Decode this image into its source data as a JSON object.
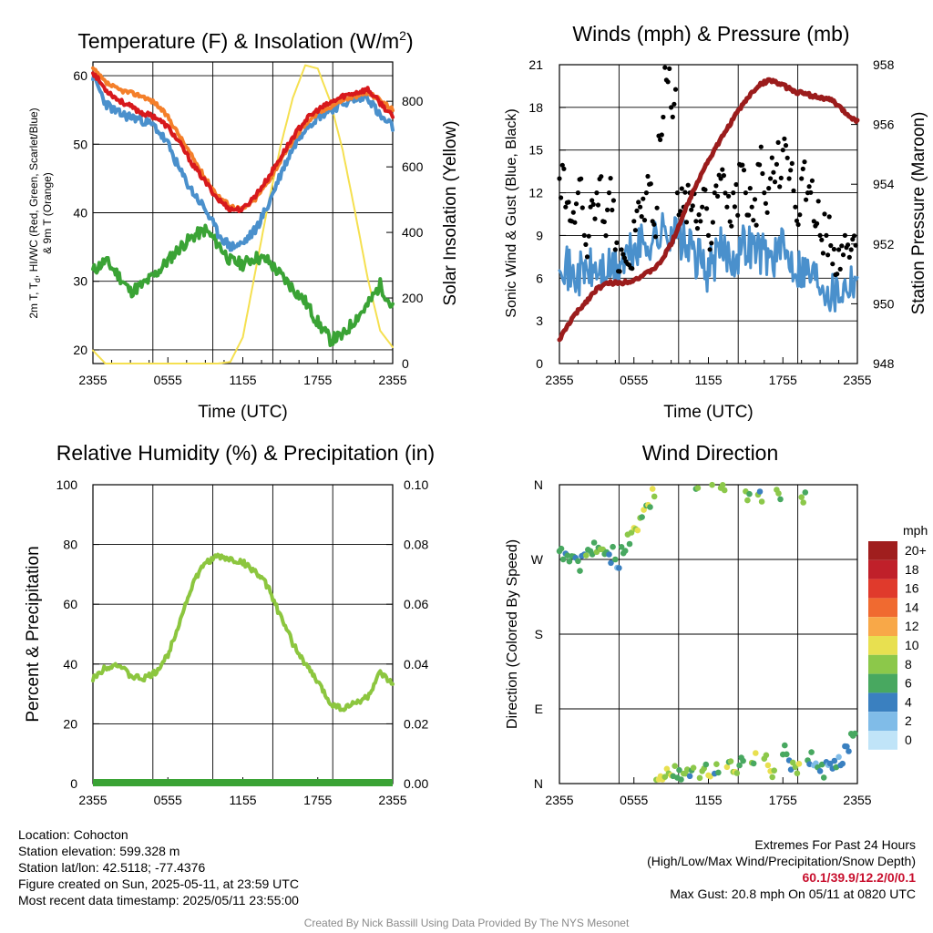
{
  "charts": {
    "temp": {
      "title": "Temperature (F) & Insolation (W/m",
      "title_sup": "2",
      "title_end": ")",
      "xlabel": "Time (UTC)",
      "ylabel_lines": [
        "2m T, T",
        "d",
        ", HI/WC (Red, Green, Scarlet/Blue)",
        "& 9m T (Orange)"
      ],
      "y2label": "Solar Insolation (Yellow)",
      "yticks": [
        "20",
        "30",
        "40",
        "50",
        "60"
      ],
      "y2ticks": [
        "0",
        "200",
        "400",
        "600",
        "800"
      ],
      "xticks": [
        "2355",
        "0555",
        "1155",
        "1755",
        "2355"
      ]
    },
    "winds": {
      "title": "Winds (mph) & Pressure (mb)",
      "xlabel": "Time (UTC)",
      "ylabel": "Sonic Wind & Gust (Blue, Black)",
      "y2label": "Station Pressure (Maroon)",
      "yticks": [
        "0",
        "3",
        "6",
        "9",
        "12",
        "15",
        "18",
        "21"
      ],
      "y2ticks": [
        "948",
        "950",
        "952",
        "954",
        "956",
        "958"
      ],
      "xticks": [
        "2355",
        "0555",
        "1155",
        "1755",
        "2355"
      ]
    },
    "rh": {
      "title": "Relative Humidity (%) & Precipitation (in)",
      "ylabel": "Percent & Precipitation",
      "yticks": [
        "0",
        "20",
        "40",
        "60",
        "80",
        "100"
      ],
      "y2ticks": [
        "0.00",
        "0.02",
        "0.04",
        "0.06",
        "0.08",
        "0.10"
      ],
      "xticks": [
        "2355",
        "0555",
        "1155",
        "1755",
        "2355"
      ]
    },
    "wdir": {
      "title": "Wind Direction",
      "ylabel": "Direction (Colored By Speed)",
      "yticks": [
        "N",
        "E",
        "S",
        "W",
        "N"
      ],
      "xticks": [
        "2355",
        "0555",
        "1155",
        "1755",
        "2355"
      ],
      "legend_title": "mph",
      "legend_labels": [
        "20+",
        "18",
        "16",
        "14",
        "12",
        "10",
        "8",
        "6",
        "4",
        "2",
        "0"
      ],
      "legend_colors": [
        "#a01e1e",
        "#c0202a",
        "#e03a2c",
        "#f06a30",
        "#f8a848",
        "#e8e050",
        "#8cc84a",
        "#48a860",
        "#3a80c0",
        "#80bce8",
        "#c0e4f8"
      ]
    }
  },
  "colors": {
    "temp_red": "#d7191c",
    "temp_orange": "#f47f2a",
    "temp_blue": "#4a90cc",
    "dewpoint_green": "#3aa335",
    "insolation_yellow": "#f5e050",
    "wind_blue": "#4a90cc",
    "gust_black": "#000000",
    "pressure_maroon": "#9b1c1c",
    "rh_green": "#8cc63f",
    "precip_green": "#3aa335"
  },
  "info": {
    "location": "Location: Cohocton",
    "elevation": "Station elevation: 599.328 m",
    "latlon": "Station lat/lon: 42.5118; -77.4376",
    "created": "Figure created on Sun, 2025-05-11, at 23:59 UTC",
    "recent": "Most recent data timestamp: 2025/05/11 23:55:00"
  },
  "extremes": {
    "title": "Extremes For Past 24 Hours",
    "subtitle": "(High/Low/Max Wind/Precipitation/Snow Depth)",
    "values": "60.1/39.9/12.2/0/0.1",
    "gust": "Max Gust: 20.8 mph On 05/11 at 0820 UTC"
  },
  "credit": "Created By Nick Bassill Using Data Provided By The NYS Mesonet",
  "chart_data": [
    {
      "type": "line",
      "title": "Temperature (F) & Insolation (W/m2)",
      "xlabel": "Time (UTC)",
      "xlim": [
        0,
        24
      ],
      "x_ticks": [
        "2355",
        "0555",
        "1155",
        "1755",
        "2355"
      ],
      "ylim": [
        18,
        62
      ],
      "y2lim": [
        0,
        920
      ],
      "series": [
        {
          "name": "2m T",
          "color": "#d7191c",
          "axis": "left",
          "x": [
            0,
            1,
            2,
            3,
            4,
            5,
            6,
            7,
            8,
            9,
            10,
            11,
            12,
            13,
            14,
            15,
            16,
            17,
            18,
            19,
            20,
            21,
            22,
            23,
            24
          ],
          "y": [
            60.5,
            58,
            56.5,
            55.5,
            54.5,
            54,
            52.5,
            50,
            47,
            44.5,
            42,
            40.5,
            40.5,
            42.5,
            45,
            48,
            51,
            53.5,
            55,
            56,
            57,
            57.5,
            58,
            56,
            54
          ]
        },
        {
          "name": "9m T",
          "color": "#f47f2a",
          "axis": "left",
          "x": [
            0,
            1,
            2,
            3,
            4,
            5,
            6,
            7,
            8,
            9,
            10,
            11,
            12,
            13,
            14,
            15,
            16,
            17,
            18,
            19,
            20,
            21,
            22,
            23,
            24
          ],
          "y": [
            61,
            59,
            58,
            57.5,
            57,
            56,
            54,
            51,
            48,
            45,
            42.5,
            41,
            40.5,
            42,
            44.5,
            47.5,
            50.5,
            53,
            54.5,
            55.5,
            56.5,
            57,
            57.5,
            56.5,
            55
          ]
        },
        {
          "name": "HI/WC",
          "color": "#4a90cc",
          "axis": "left",
          "x": [
            0,
            1,
            2,
            3,
            4,
            5,
            6,
            7,
            8,
            9,
            10,
            11,
            12,
            13,
            14,
            15,
            16,
            17,
            18,
            19,
            20,
            21,
            22,
            23,
            24
          ],
          "y": [
            60,
            56,
            54.5,
            54,
            53.5,
            52.5,
            50,
            46,
            43,
            40.5,
            37,
            35,
            35.5,
            37.5,
            41,
            45.5,
            49.5,
            52.5,
            54,
            55,
            56,
            56.5,
            57,
            54,
            52.5
          ]
        },
        {
          "name": "2m Td",
          "color": "#3aa335",
          "axis": "left",
          "x": [
            0,
            1,
            2,
            3,
            4,
            5,
            6,
            7,
            8,
            9,
            10,
            11,
            12,
            13,
            14,
            15,
            16,
            17,
            18,
            19,
            20,
            21,
            22,
            23,
            24
          ],
          "y": [
            31.5,
            33,
            31,
            28.5,
            29.5,
            31,
            33,
            35,
            36.5,
            37.5,
            35.5,
            33,
            32.5,
            33.5,
            33,
            31,
            29,
            27,
            24,
            21.5,
            22,
            24.5,
            26.5,
            29.5,
            26
          ]
        },
        {
          "name": "Solar Insolation",
          "color": "#f5e050",
          "axis": "right",
          "x": [
            0,
            1,
            2,
            3,
            4,
            5,
            6,
            7,
            8,
            9,
            10,
            11,
            12,
            13,
            14,
            15,
            16,
            17,
            18,
            19,
            20,
            21,
            22,
            23,
            24
          ],
          "y": [
            40,
            0,
            0,
            0,
            0,
            0,
            0,
            0,
            0,
            0,
            0,
            5,
            80,
            280,
            480,
            660,
            810,
            910,
            900,
            800,
            650,
            460,
            260,
            100,
            50
          ]
        }
      ]
    },
    {
      "type": "line",
      "title": "Winds (mph) & Pressure (mb)",
      "xlabel": "Time (UTC)",
      "xlim": [
        0,
        24
      ],
      "x_ticks": [
        "2355",
        "0555",
        "1155",
        "1755",
        "2355"
      ],
      "ylim": [
        0,
        21
      ],
      "y2lim": [
        948,
        958
      ],
      "series": [
        {
          "name": "Sonic Wind",
          "color": "#4a90cc",
          "axis": "left",
          "x": [
            0,
            1,
            2,
            3,
            4,
            5,
            6,
            7,
            8,
            9,
            10,
            11,
            12,
            13,
            14,
            15,
            16,
            17,
            18,
            19,
            20,
            21,
            22,
            23,
            24
          ],
          "y": [
            8,
            6,
            6.5,
            6.5,
            6.5,
            7,
            8,
            8.5,
            9,
            9.5,
            8.5,
            7.5,
            6.5,
            8,
            7.5,
            8.5,
            8,
            7.5,
            8,
            7,
            6.5,
            6,
            5,
            5.5,
            6.5
          ]
        },
        {
          "name": "Gust",
          "color": "#000000",
          "axis": "left",
          "mode": "points",
          "x": [
            0,
            0.5,
            1,
            1.5,
            2,
            2.5,
            3,
            3.5,
            4,
            4.5,
            5,
            5.5,
            6,
            6.5,
            7,
            7.5,
            8,
            8.5,
            9,
            9.5,
            10,
            10.5,
            11,
            11.5,
            12,
            12.5,
            13,
            13.5,
            14,
            14.5,
            15,
            15.5,
            16,
            16.5,
            17,
            17.5,
            18,
            18.5,
            19,
            19.5,
            20,
            20.5,
            21,
            21.5,
            22,
            22.5,
            23,
            23.5
          ],
          "y": [
            13,
            11,
            10,
            12,
            9,
            11,
            12,
            10,
            12,
            8,
            8,
            7,
            10,
            11,
            12,
            10,
            16,
            20.8,
            18,
            12,
            11,
            12,
            10,
            11,
            9,
            12,
            13,
            11,
            12,
            14,
            12,
            11,
            14,
            12,
            13,
            14,
            15,
            13,
            11,
            13,
            12,
            10,
            9,
            9,
            7,
            8,
            9,
            8
          ]
        },
        {
          "name": "Station Pressure",
          "color": "#9b1c1c",
          "axis": "right",
          "x": [
            0,
            1,
            2,
            3,
            4,
            5,
            6,
            7,
            8,
            9,
            10,
            11,
            12,
            13,
            14,
            15,
            16,
            17,
            18,
            19,
            20,
            21,
            22,
            23,
            24
          ],
          "y": [
            948.8,
            949.5,
            950,
            950.5,
            950.7,
            950.7,
            950.8,
            951,
            951.3,
            952,
            953,
            954,
            954.8,
            955.5,
            956.2,
            956.8,
            957.3,
            957.5,
            957.3,
            957.1,
            957,
            956.9,
            956.8,
            956.4,
            956.1
          ]
        }
      ]
    },
    {
      "type": "line",
      "title": "Relative Humidity (%) & Precipitation (in)",
      "xlim": [
        0,
        24
      ],
      "x_ticks": [
        "2355",
        "0555",
        "1155",
        "1755",
        "2355"
      ],
      "ylim": [
        0,
        100
      ],
      "y2lim": [
        0,
        0.1
      ],
      "series": [
        {
          "name": "RH",
          "color": "#8cc63f",
          "axis": "left",
          "x": [
            0,
            1,
            2,
            3,
            4,
            5,
            6,
            7,
            8,
            9,
            10,
            11,
            12,
            13,
            14,
            15,
            16,
            17,
            18,
            19,
            20,
            21,
            22,
            23,
            24
          ],
          "y": [
            35,
            39,
            40,
            36,
            35,
            37,
            43,
            55,
            67,
            74,
            76,
            75,
            74,
            71,
            66,
            56,
            47,
            40,
            34,
            27,
            25,
            27,
            29,
            37,
            33
          ]
        },
        {
          "name": "Precipitation",
          "color": "#3aa335",
          "axis": "right",
          "x": [
            0,
            24
          ],
          "y": [
            0,
            0
          ]
        }
      ]
    },
    {
      "type": "scatter",
      "title": "Wind Direction",
      "xlim": [
        0,
        24
      ],
      "x_ticks": [
        "2355",
        "0555",
        "1155",
        "1755",
        "2355"
      ],
      "y_ticks": [
        "N",
        "E",
        "S",
        "W",
        "N"
      ],
      "ylim": [
        0,
        360
      ],
      "color_by": "speed (mph)",
      "points": [
        {
          "x": 0.0,
          "dir": 280,
          "spd": 6
        },
        {
          "x": 0.5,
          "dir": 277,
          "spd": 5
        },
        {
          "x": 1.0,
          "dir": 274,
          "spd": 5
        },
        {
          "x": 1.5,
          "dir": 268,
          "spd": 4
        },
        {
          "x": 2.0,
          "dir": 276,
          "spd": 6
        },
        {
          "x": 2.5,
          "dir": 280,
          "spd": 7
        },
        {
          "x": 3.0,
          "dir": 279,
          "spd": 7
        },
        {
          "x": 3.5,
          "dir": 282,
          "spd": 6
        },
        {
          "x": 4.0,
          "dir": 276,
          "spd": 5
        },
        {
          "x": 4.5,
          "dir": 270,
          "spd": 4
        },
        {
          "x": 5.0,
          "dir": 285,
          "spd": 7
        },
        {
          "x": 5.5,
          "dir": 300,
          "spd": 8
        },
        {
          "x": 6.0,
          "dir": 308,
          "spd": 8
        },
        {
          "x": 6.5,
          "dir": 320,
          "spd": 8
        },
        {
          "x": 7.0,
          "dir": 335,
          "spd": 8
        },
        {
          "x": 7.5,
          "dir": 355,
          "spd": 10
        },
        {
          "x": 8.0,
          "dir": 5,
          "spd": 11
        },
        {
          "x": 8.5,
          "dir": 8,
          "spd": 9
        },
        {
          "x": 9.0,
          "dir": 10,
          "spd": 8
        },
        {
          "x": 9.5,
          "dir": 7,
          "spd": 7
        },
        {
          "x": 10.0,
          "dir": 12,
          "spd": 9
        },
        {
          "x": 10.5,
          "dir": 9,
          "spd": 6
        },
        {
          "x": 11.0,
          "dir": 355,
          "spd": 7
        },
        {
          "x": 11.5,
          "dir": 15,
          "spd": 7
        },
        {
          "x": 12.0,
          "dir": 10,
          "spd": 8
        },
        {
          "x": 12.5,
          "dir": 12,
          "spd": 6
        },
        {
          "x": 13.0,
          "dir": 356,
          "spd": 7
        },
        {
          "x": 13.5,
          "dir": 20,
          "spd": 8
        },
        {
          "x": 14.0,
          "dir": 14,
          "spd": 9
        },
        {
          "x": 14.5,
          "dir": 22,
          "spd": 7
        },
        {
          "x": 15.0,
          "dir": 352,
          "spd": 7
        },
        {
          "x": 15.5,
          "dir": 25,
          "spd": 8
        },
        {
          "x": 16.0,
          "dir": 348,
          "spd": 6
        },
        {
          "x": 16.5,
          "dir": 30,
          "spd": 9
        },
        {
          "x": 17.0,
          "dir": 15,
          "spd": 8
        },
        {
          "x": 17.5,
          "dir": 354,
          "spd": 7
        },
        {
          "x": 18.0,
          "dir": 35,
          "spd": 7
        },
        {
          "x": 18.5,
          "dir": 28,
          "spd": 6
        },
        {
          "x": 19.0,
          "dir": 20,
          "spd": 8
        },
        {
          "x": 19.5,
          "dir": 345,
          "spd": 6
        },
        {
          "x": 20.0,
          "dir": 28,
          "spd": 5
        },
        {
          "x": 20.5,
          "dir": 22,
          "spd": 4
        },
        {
          "x": 21.0,
          "dir": 15,
          "spd": 5
        },
        {
          "x": 21.5,
          "dir": 26,
          "spd": 3
        },
        {
          "x": 22.0,
          "dir": 18,
          "spd": 5
        },
        {
          "x": 22.5,
          "dir": 32,
          "spd": 4
        },
        {
          "x": 23.0,
          "dir": 45,
          "spd": 6
        },
        {
          "x": 23.5,
          "dir": 60,
          "spd": 5
        }
      ]
    }
  ]
}
